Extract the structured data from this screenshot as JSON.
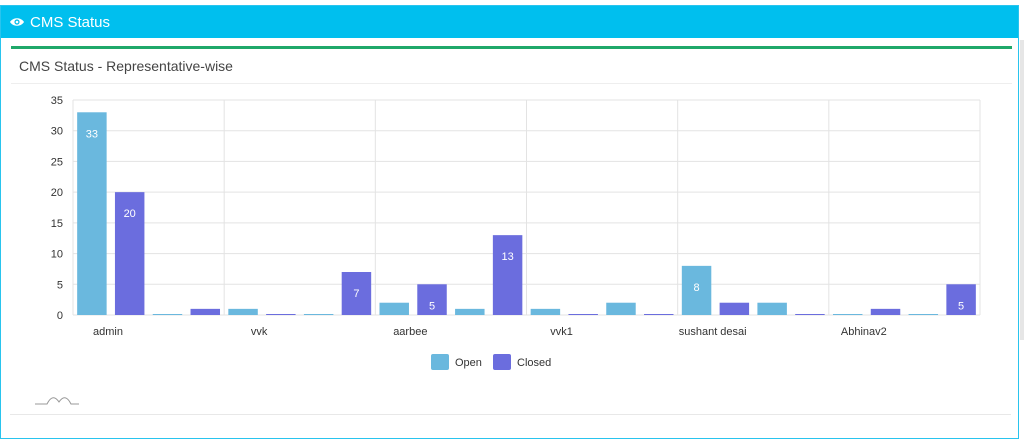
{
  "header": {
    "title": "CMS Status",
    "icon": "eye-icon"
  },
  "box": {
    "title": "CMS Status - Representative-wise"
  },
  "colors": {
    "header": "#00bfee",
    "accent": "#1fa86a",
    "open": "#6ab8de",
    "closed": "#6b6dde"
  },
  "chart_data": {
    "type": "bar",
    "groups": [
      "admin",
      "vvk",
      "aarbee",
      "vvk1",
      "sushant desai",
      "Abhinav2"
    ],
    "bars_per_group": 4,
    "series": [
      {
        "name": "Open",
        "color": "#6ab8de"
      },
      {
        "name": "Closed",
        "color": "#6b6dde"
      }
    ],
    "bars": [
      [
        {
          "series": "Open",
          "value": 33,
          "label": "33"
        },
        {
          "series": "Closed",
          "value": 20,
          "label": "20"
        },
        {
          "series": "Open",
          "value": 0
        },
        {
          "series": "Closed",
          "value": 1
        }
      ],
      [
        {
          "series": "Open",
          "value": 1
        },
        {
          "series": "Closed",
          "value": 0
        },
        {
          "series": "Open",
          "value": 0
        },
        {
          "series": "Closed",
          "value": 7,
          "label": "7"
        }
      ],
      [
        {
          "series": "Open",
          "value": 2
        },
        {
          "series": "Closed",
          "value": 5,
          "label": "5"
        },
        {
          "series": "Open",
          "value": 1
        },
        {
          "series": "Closed",
          "value": 13,
          "label": "13"
        }
      ],
      [
        {
          "series": "Open",
          "value": 1
        },
        {
          "series": "Closed",
          "value": 0
        },
        {
          "series": "Open",
          "value": 2
        },
        {
          "series": "Closed",
          "value": 0
        }
      ],
      [
        {
          "series": "Open",
          "value": 8,
          "label": "8"
        },
        {
          "series": "Closed",
          "value": 2
        },
        {
          "series": "Open",
          "value": 2
        },
        {
          "series": "Closed",
          "value": 0
        }
      ],
      [
        {
          "series": "Open",
          "value": 0
        },
        {
          "series": "Closed",
          "value": 1
        },
        {
          "series": "Open",
          "value": 0
        },
        {
          "series": "Closed",
          "value": 5,
          "label": "5"
        }
      ]
    ],
    "y_ticks": [
      "0",
      "5",
      "10",
      "15",
      "20",
      "25",
      "30",
      "35"
    ],
    "ylim": [
      0,
      35
    ],
    "grid": true,
    "legend": "bottom-center"
  }
}
